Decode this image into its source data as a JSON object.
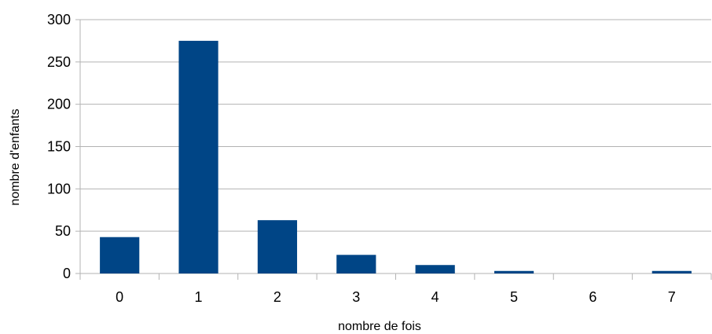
{
  "chart_data": {
    "type": "bar",
    "categories": [
      "0",
      "1",
      "2",
      "3",
      "4",
      "5",
      "6",
      "7"
    ],
    "values": [
      43,
      275,
      63,
      22,
      10,
      3,
      0,
      3
    ],
    "title": "",
    "xlabel": "nombre de fois",
    "ylabel": "nombre d'enfants",
    "ylim": [
      0,
      300
    ],
    "yticks": [
      0,
      50,
      100,
      150,
      200,
      250,
      300
    ],
    "grid": true,
    "legend": "none",
    "bar_color": "#004586"
  }
}
